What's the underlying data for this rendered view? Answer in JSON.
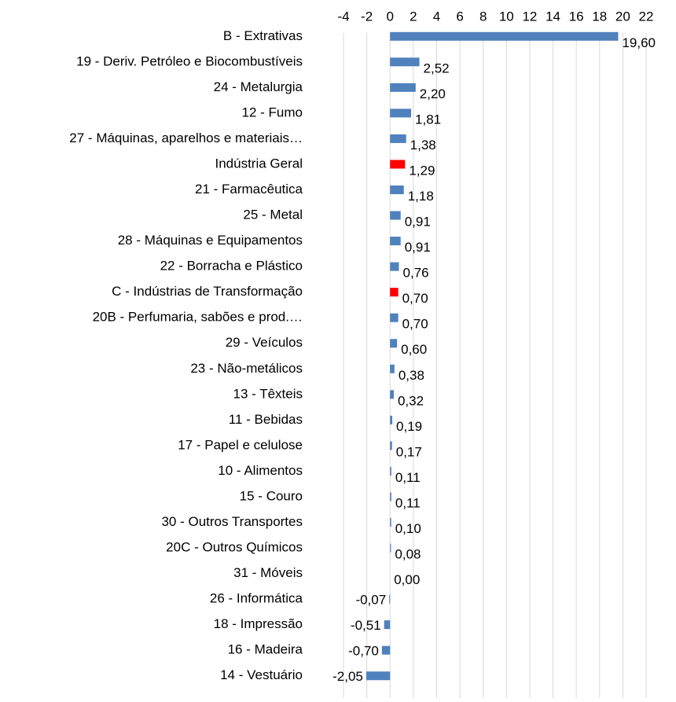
{
  "chart_data": {
    "type": "hbar",
    "categories": [
      "B - Extrativas",
      "19 - Deriv. Petróleo e Biocombustíveis",
      "24 - Metalurgia",
      "12 - Fumo",
      "27 - Máquinas, aparelhos e materiais…",
      "Indústria Geral",
      "21 - Farmacêutica",
      "25 - Metal",
      "28 - Máquinas e Equipamentos",
      "22 - Borracha e Plástico",
      "C - Indústrias de Transformação",
      "20B - Perfumaria, sabões e prod.…",
      "29 - Veículos",
      "23 - Não-metálicos",
      "13 - Têxteis",
      "11 - Bebidas",
      "17 - Papel e celulose",
      "10 - Alimentos",
      "15 - Couro",
      "30 - Outros Transportes",
      "20C - Outros Químicos",
      "31 - Móveis",
      "26 - Informática",
      "18 - Impressão",
      "16 - Madeira",
      "14 - Vestuário"
    ],
    "values": [
      19.6,
      2.52,
      2.2,
      1.81,
      1.38,
      1.29,
      1.18,
      0.91,
      0.91,
      0.76,
      0.7,
      0.7,
      0.6,
      0.38,
      0.32,
      0.19,
      0.17,
      0.11,
      0.11,
      0.1,
      0.08,
      0.0,
      -0.07,
      -0.51,
      -0.7,
      -2.05
    ],
    "value_labels": [
      "19,60",
      "2,52",
      "2,20",
      "1,81",
      "1,38",
      "1,29",
      "1,18",
      "0,91",
      "0,91",
      "0,76",
      "0,70",
      "0,70",
      "0,60",
      "0,38",
      "0,32",
      "0,19",
      "0,17",
      "0,11",
      "0,11",
      "0,10",
      "0,08",
      "0,00",
      "-0,07",
      "-0,51",
      "-0,70",
      "-2,05"
    ],
    "colors": [
      "#4f81bd",
      "#4f81bd",
      "#4f81bd",
      "#4f81bd",
      "#4f81bd",
      "#ff0000",
      "#4f81bd",
      "#4f81bd",
      "#4f81bd",
      "#4f81bd",
      "#ff0000",
      "#4f81bd",
      "#4f81bd",
      "#4f81bd",
      "#4f81bd",
      "#4f81bd",
      "#4f81bd",
      "#4f81bd",
      "#4f81bd",
      "#4f81bd",
      "#4f81bd",
      "#4f81bd",
      "#4f81bd",
      "#4f81bd",
      "#4f81bd",
      "#4f81bd"
    ],
    "xlim": [
      -4,
      22
    ],
    "xticks": [
      -4,
      -2,
      0,
      2,
      4,
      6,
      8,
      10,
      12,
      14,
      16,
      18,
      20,
      22
    ],
    "grid": true
  }
}
